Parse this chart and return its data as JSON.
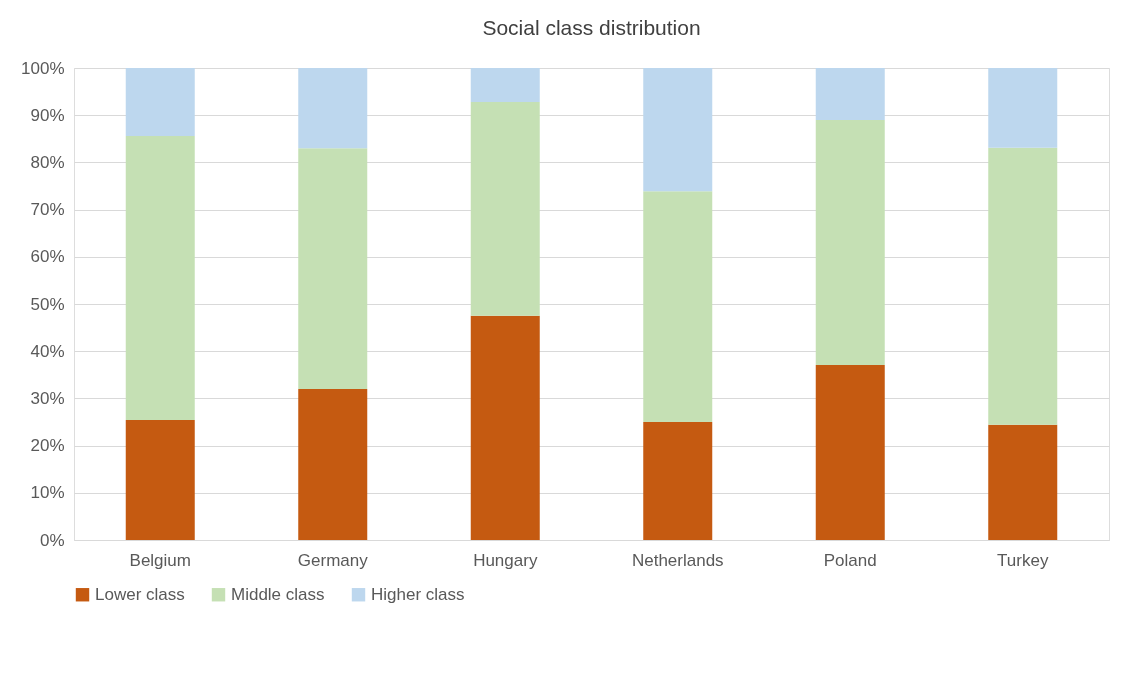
{
  "chart_data": {
    "type": "bar",
    "title": "Social class distribution",
    "stacked": true,
    "categories": [
      "Belgium",
      "Germany",
      "Hungary",
      "Netherlands",
      "Poland",
      "Turkey"
    ],
    "series": [
      {
        "name": "Lower class",
        "color": "#c55a11",
        "values": [
          25.4,
          32.0,
          47.5,
          25.0,
          37.1,
          24.4
        ]
      },
      {
        "name": "Middle class",
        "color": "#c5e0b4",
        "values": [
          60.2,
          51.0,
          45.3,
          48.9,
          51.9,
          58.7
        ]
      },
      {
        "name": "Higher class",
        "color": "#bdd7ee",
        "values": [
          14.4,
          17.0,
          7.2,
          26.1,
          11.0,
          16.9
        ]
      }
    ],
    "ylim": [
      0,
      100
    ],
    "yticks": [
      {
        "value": 0,
        "label": "0%"
      },
      {
        "value": 10,
        "label": "10%"
      },
      {
        "value": 20,
        "label": "20%"
      },
      {
        "value": 30,
        "label": "30%"
      },
      {
        "value": 40,
        "label": "40%"
      },
      {
        "value": 50,
        "label": "50%"
      },
      {
        "value": 60,
        "label": "60%"
      },
      {
        "value": 70,
        "label": "70%"
      },
      {
        "value": 80,
        "label": "80%"
      },
      {
        "value": 90,
        "label": "90%"
      },
      {
        "value": 100,
        "label": "100%"
      }
    ],
    "grid": "y",
    "legend": "bottom"
  }
}
